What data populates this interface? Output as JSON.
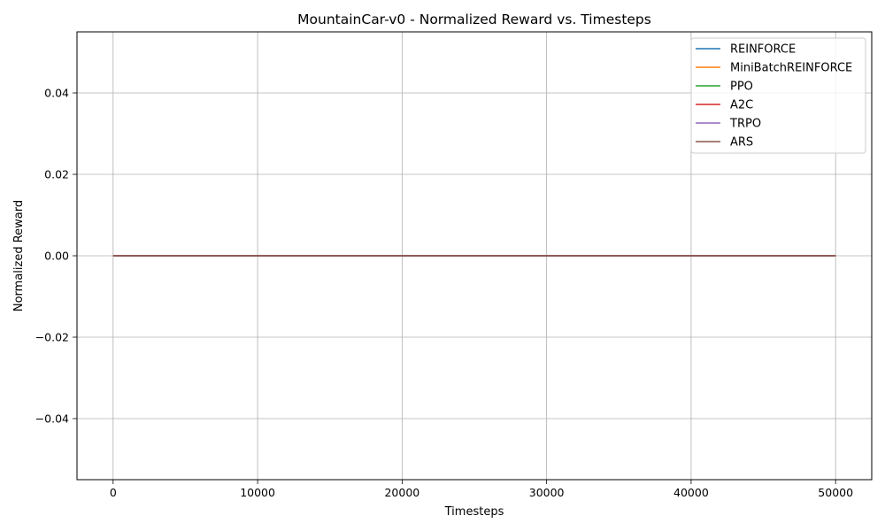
{
  "chart_data": {
    "type": "line",
    "title": "MountainCar-v0 - Normalized Reward vs. Timesteps",
    "xlabel": "Timesteps",
    "ylabel": "Normalized Reward",
    "xlim": [
      -2500,
      52500
    ],
    "ylim": [
      -0.055,
      0.055
    ],
    "xticks": [
      0,
      10000,
      20000,
      30000,
      40000,
      50000
    ],
    "xtick_labels": [
      "0",
      "10000",
      "20000",
      "30000",
      "40000",
      "50000"
    ],
    "yticks": [
      0.04,
      0.02,
      0.0,
      -0.02,
      -0.04
    ],
    "ytick_labels": [
      "0.04",
      "0.02",
      "0.00",
      "−0.02",
      "−0.04"
    ],
    "grid": true,
    "legend_position": "top-right",
    "x": [
      0,
      50000
    ],
    "series": [
      {
        "name": "REINFORCE",
        "color": "#1f77b4",
        "values": [
          0,
          0
        ]
      },
      {
        "name": "MiniBatchREINFORCE",
        "color": "#ff7f0e",
        "values": [
          0,
          0
        ]
      },
      {
        "name": "PPO",
        "color": "#2ca02c",
        "values": [
          0,
          0
        ]
      },
      {
        "name": "A2C",
        "color": "#d62728",
        "values": [
          0,
          0
        ]
      },
      {
        "name": "TRPO",
        "color": "#9467bd",
        "values": [
          0,
          0
        ]
      },
      {
        "name": "ARS",
        "color": "#8c564b",
        "values": [
          0,
          0
        ]
      }
    ]
  }
}
